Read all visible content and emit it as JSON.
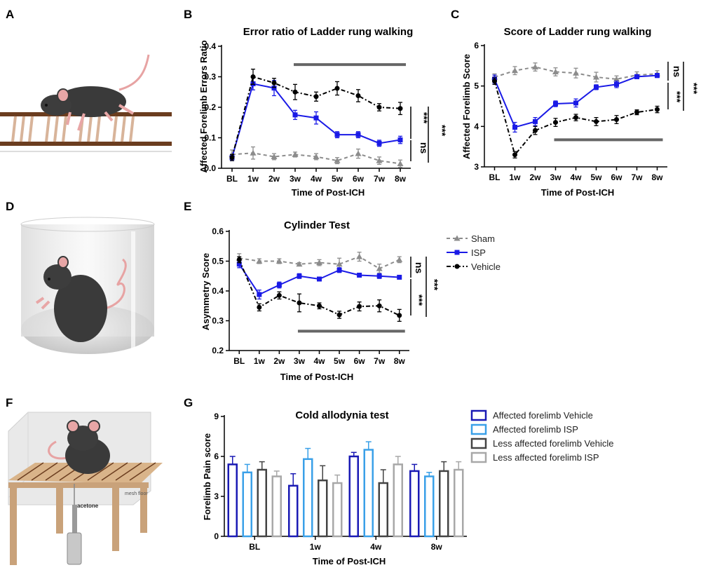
{
  "panels": {
    "a": "A",
    "b": "B",
    "c": "C",
    "d": "D",
    "e": "E",
    "f": "F",
    "g": "G"
  },
  "illustrations": {
    "mesh_floor": "mesh floor",
    "acetone": "acetone"
  },
  "colors": {
    "sham": "#8c8c8c",
    "isp": "#1a1ae6",
    "vehicle": "#000000",
    "bar_dark_blue": "#1a1ab4",
    "bar_light_blue": "#3aa0e8",
    "bar_dark_gray": "#444444",
    "bar_light_gray": "#a8a8a8",
    "hbar": "#666666"
  },
  "legend_lines": [
    {
      "label": "Sham",
      "series": "sham"
    },
    {
      "label": "ISP",
      "series": "isp"
    },
    {
      "label": "Vehicle",
      "series": "vehicle"
    }
  ],
  "chart_data": [
    {
      "id": "B",
      "type": "line",
      "title": "Error ratio of Ladder rung walking",
      "xlabel": "Time of Post-ICH",
      "ylabel": "Affected Forelimb Errors Ratio",
      "categories": [
        "BL",
        "1w",
        "2w",
        "3w",
        "4w",
        "5w",
        "6w",
        "7w",
        "8w"
      ],
      "ylim": [
        0,
        0.4
      ],
      "yticks": [
        "0.0",
        "0.1",
        "0.2",
        "0.3",
        "0.4"
      ],
      "series": [
        {
          "name": "Sham",
          "key": "sham",
          "values": [
            0.045,
            0.05,
            0.038,
            0.045,
            0.038,
            0.025,
            0.048,
            0.025,
            0.015
          ],
          "err": [
            0.015,
            0.02,
            0.01,
            0.008,
            0.01,
            0.01,
            0.015,
            0.012,
            0.012
          ]
        },
        {
          "name": "ISP",
          "key": "isp",
          "values": [
            0.035,
            0.277,
            0.263,
            0.175,
            0.165,
            0.11,
            0.11,
            0.082,
            0.093
          ],
          "err": [
            0.01,
            0.02,
            0.025,
            0.015,
            0.02,
            0.01,
            0.01,
            0.01,
            0.012
          ]
        },
        {
          "name": "Vehicle",
          "key": "vehicle",
          "values": [
            0.035,
            0.3,
            0.28,
            0.25,
            0.235,
            0.262,
            0.238,
            0.2,
            0.196
          ],
          "err": [
            0.01,
            0.025,
            0.015,
            0.025,
            0.015,
            0.022,
            0.02,
            0.012,
            0.02
          ]
        }
      ],
      "significance": [
        {
          "label": "***",
          "between": "ISP-Vehicle"
        },
        {
          "label": "ns",
          "between": "ISP-Sham"
        },
        {
          "label": "***",
          "between": "Sham-Vehicle"
        }
      ],
      "period_bar": {
        "from": "3w",
        "to": "8w",
        "value": 0.34
      }
    },
    {
      "id": "C",
      "type": "line",
      "title": "Score of Ladder rung walking",
      "xlabel": "Time of Post-ICH",
      "ylabel": "Affected Forelimb Score",
      "categories": [
        "BL",
        "1w",
        "2w",
        "3w",
        "4w",
        "5w",
        "6w",
        "7w",
        "8w"
      ],
      "ylim": [
        3,
        6
      ],
      "yticks": [
        "3",
        "4",
        "5",
        "6"
      ],
      "series": [
        {
          "name": "Sham",
          "key": "sham",
          "values": [
            5.22,
            5.38,
            5.47,
            5.35,
            5.32,
            5.22,
            5.17,
            5.27,
            5.3
          ],
          "err": [
            0.08,
            0.1,
            0.1,
            0.1,
            0.12,
            0.12,
            0.08,
            0.08,
            0.08
          ]
        },
        {
          "name": "ISP",
          "key": "isp",
          "values": [
            5.17,
            3.98,
            4.12,
            4.56,
            4.58,
            4.97,
            5.04,
            5.23,
            5.26
          ],
          "err": [
            0.1,
            0.12,
            0.1,
            0.07,
            0.1,
            0.06,
            0.08,
            0.05,
            0.05
          ]
        },
        {
          "name": "Vehicle",
          "key": "vehicle",
          "values": [
            5.12,
            3.3,
            3.9,
            4.1,
            4.22,
            4.12,
            4.17,
            4.35,
            4.42
          ],
          "err": [
            0.08,
            0.08,
            0.1,
            0.1,
            0.08,
            0.1,
            0.1,
            0.06,
            0.08
          ]
        }
      ],
      "significance": [
        {
          "label": "ns",
          "between": "ISP-Sham"
        },
        {
          "label": "***",
          "between": "ISP-Vehicle"
        },
        {
          "label": "***",
          "between": "Sham-Vehicle"
        }
      ],
      "period_bar": {
        "from": "3w",
        "to": "8w",
        "value": 3.67
      }
    },
    {
      "id": "E",
      "type": "line",
      "title": "Cylinder Test",
      "xlabel": "Time of Post-ICH",
      "ylabel": "Asymmetry Score",
      "categories": [
        "BL",
        "1w",
        "2w",
        "3w",
        "4w",
        "5w",
        "6w",
        "7w",
        "8w"
      ],
      "ylim": [
        0.2,
        0.6
      ],
      "yticks": [
        "0.2",
        "0.3",
        "0.4",
        "0.5",
        "0.6"
      ],
      "series": [
        {
          "name": "Sham",
          "key": "sham",
          "values": [
            0.51,
            0.5,
            0.5,
            0.49,
            0.495,
            0.49,
            0.515,
            0.475,
            0.505
          ],
          "err": [
            0.015,
            0.008,
            0.008,
            0.005,
            0.01,
            0.02,
            0.015,
            0.015,
            0.01
          ]
        },
        {
          "name": "ISP",
          "key": "isp",
          "values": [
            0.49,
            0.388,
            0.42,
            0.45,
            0.44,
            0.47,
            0.453,
            0.45,
            0.446
          ],
          "err": [
            0.012,
            0.015,
            0.01,
            0.008,
            0.005,
            0.008,
            0.005,
            0.008,
            0.005
          ]
        },
        {
          "name": "Vehicle",
          "key": "vehicle",
          "values": [
            0.505,
            0.345,
            0.385,
            0.36,
            0.35,
            0.32,
            0.348,
            0.35,
            0.318
          ],
          "err": [
            0.01,
            0.012,
            0.012,
            0.03,
            0.01,
            0.012,
            0.015,
            0.02,
            0.02
          ]
        }
      ],
      "significance": [
        {
          "label": "ns",
          "between": "ISP-Sham"
        },
        {
          "label": "***",
          "between": "ISP-Vehicle"
        },
        {
          "label": "***",
          "between": "Sham-Vehicle"
        }
      ],
      "period_bar": {
        "from": "3w",
        "to": "8w",
        "value": 0.265
      }
    },
    {
      "id": "G",
      "type": "bar",
      "title": "Cold allodynia test",
      "xlabel": "Time of Post-ICH",
      "ylabel": "Forelimb Pain score",
      "categories": [
        "BL",
        "1w",
        "4w",
        "8w"
      ],
      "ylim": [
        0,
        9
      ],
      "yticks": [
        "0",
        "3",
        "6",
        "9"
      ],
      "series": [
        {
          "name": "Affected forelimb Vehicle",
          "key": "bar_dark_blue",
          "values": [
            5.4,
            3.8,
            6.0,
            4.9
          ],
          "err": [
            0.6,
            0.9,
            0.3,
            0.5
          ]
        },
        {
          "name": "Affected forelimb ISP",
          "key": "bar_light_blue",
          "values": [
            4.8,
            5.8,
            6.5,
            4.5
          ],
          "err": [
            0.6,
            0.8,
            0.6,
            0.3
          ]
        },
        {
          "name": "Less affected forelimb Vehicle",
          "key": "bar_dark_gray",
          "values": [
            5.0,
            4.2,
            4.0,
            4.9
          ],
          "err": [
            0.6,
            1.1,
            1.0,
            0.7
          ]
        },
        {
          "name": "Less affected forelimb ISP",
          "key": "bar_light_gray",
          "values": [
            4.5,
            4.0,
            5.4,
            5.0
          ],
          "err": [
            0.4,
            0.6,
            0.6,
            0.6
          ]
        }
      ]
    }
  ]
}
